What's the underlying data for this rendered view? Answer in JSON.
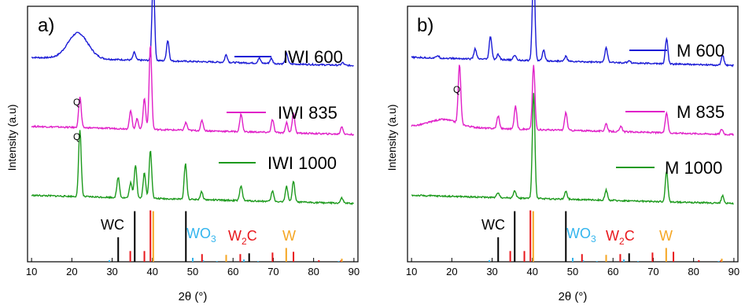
{
  "figure": {
    "xlabel": "2θ (°)",
    "ylabel": "Intensity (a.u)",
    "xticks": [
      10,
      20,
      30,
      40,
      50,
      60,
      70,
      80,
      90
    ]
  },
  "colors": {
    "blue": "#1b1bd6",
    "magenta": "#e020c8",
    "green": "#1d9a1d",
    "WC": "#000000",
    "WO3": "#33b5ee",
    "W2C": "#e8161b",
    "W": "#f5a623"
  },
  "panels": [
    {
      "label": "a)",
      "legend": [
        "IWI 600",
        "IWI 835",
        "IWI 1000"
      ],
      "q_labels": [
        "Q",
        "Q"
      ],
      "refs": {
        "WC": {
          "text": "WC"
        },
        "WO3": {
          "text": "WO",
          "sub": "3"
        },
        "W2C": {
          "text": "W",
          "sub": "2",
          "tail": "C"
        },
        "W": {
          "text": "W"
        }
      }
    },
    {
      "label": "b)",
      "legend": [
        "M 600",
        "M 835",
        "M 1000"
      ],
      "q_labels": [
        "Q"
      ],
      "refs": {
        "WC": {
          "text": "WC"
        },
        "WO3": {
          "text": "WO",
          "sub": "3"
        },
        "W2C": {
          "text": "W",
          "sub": "2",
          "tail": "C"
        },
        "W": {
          "text": "W"
        }
      }
    }
  ],
  "chart_data": [
    {
      "type": "line",
      "title": "a)",
      "xlabel": "2θ (°)",
      "ylabel": "Intensity (a.u)",
      "xlim": [
        9,
        91
      ],
      "series": [
        {
          "name": "IWI 600",
          "color": "#1b1bd6",
          "baseline": 0.8,
          "broad": {
            "x": 21.5,
            "h": 0.1,
            "w": 3.5
          },
          "peaks": [
            [
              35.5,
              0.03
            ],
            [
              40.2,
              0.33
            ],
            [
              43.8,
              0.08
            ],
            [
              58.3,
              0.03
            ],
            [
              66.5,
              0.02
            ],
            [
              69.5,
              0.02
            ],
            [
              73.3,
              0.04
            ],
            [
              87.2,
              0.01
            ]
          ]
        },
        {
          "name": "IWI 835",
          "color": "#e020c8",
          "baseline": 0.53,
          "broad": null,
          "peaks": [
            [
              22.0,
              0.12
            ],
            [
              34.6,
              0.07
            ],
            [
              36.2,
              0.04
            ],
            [
              38.0,
              0.12
            ],
            [
              39.5,
              0.33
            ],
            [
              48.3,
              0.03
            ],
            [
              52.3,
              0.04
            ],
            [
              62.0,
              0.07
            ],
            [
              69.8,
              0.05
            ],
            [
              73.3,
              0.04
            ],
            [
              75.0,
              0.08
            ],
            [
              87.0,
              0.03
            ]
          ]
        },
        {
          "name": "IWI 1000",
          "color": "#1d9a1d",
          "baseline": 0.26,
          "broad": null,
          "peaks": [
            [
              22.0,
              0.26
            ],
            [
              31.5,
              0.08
            ],
            [
              34.6,
              0.06
            ],
            [
              35.8,
              0.13
            ],
            [
              38.0,
              0.1
            ],
            [
              39.5,
              0.19
            ],
            [
              48.2,
              0.14
            ],
            [
              52.2,
              0.03
            ],
            [
              62.0,
              0.06
            ],
            [
              69.8,
              0.04
            ],
            [
              73.3,
              0.06
            ],
            [
              75.0,
              0.08
            ],
            [
              87.0,
              0.02
            ]
          ]
        }
      ],
      "reference_lines": {
        "WC": {
          "color": "#000000",
          "lines": [
            [
              31.5,
              0.32
            ],
            [
              35.6,
              0.66
            ],
            [
              48.3,
              0.66
            ],
            [
              64.0,
              0.11
            ]
          ]
        },
        "WO3": {
          "color": "#33b5ee",
          "lines": [
            [
              29.3,
              0.02
            ],
            [
              50.0,
              0.05
            ],
            [
              52.6,
              0.02
            ],
            [
              56.0,
              0.01
            ],
            [
              62.7,
              0.03
            ],
            [
              66.2,
              0.01
            ],
            [
              86.2,
              0.01
            ]
          ]
        },
        "W2C": {
          "color": "#e8161b",
          "lines": [
            [
              34.5,
              0.14
            ],
            [
              38.0,
              0.14
            ],
            [
              39.5,
              0.67
            ],
            [
              52.3,
              0.1
            ],
            [
              61.8,
              0.1
            ],
            [
              69.8,
              0.12
            ],
            [
              75.0,
              0.13
            ],
            [
              81.3,
              0.02
            ],
            [
              86.8,
              0.02
            ]
          ]
        },
        "W": {
          "color": "#f5a623",
          "lines": [
            [
              40.2,
              0.66
            ],
            [
              58.3,
              0.09
            ],
            [
              73.2,
              0.18
            ],
            [
              87.0,
              0.04
            ]
          ]
        }
      }
    },
    {
      "type": "line",
      "title": "b)",
      "xlabel": "2θ (°)",
      "ylabel": "Intensity (a.u)",
      "xlim": [
        9,
        91
      ],
      "series": [
        {
          "name": "M 600",
          "color": "#1b1bd6",
          "baseline": 0.8,
          "broad": null,
          "peaks": [
            [
              16.5,
              0.01
            ],
            [
              25.8,
              0.04
            ],
            [
              29.6,
              0.09
            ],
            [
              31.5,
              0.02
            ],
            [
              35.6,
              0.02
            ],
            [
              40.3,
              0.37
            ],
            [
              42.8,
              0.04
            ],
            [
              48.3,
              0.02
            ],
            [
              58.3,
              0.06
            ],
            [
              64.0,
              0.01
            ],
            [
              73.3,
              0.1
            ],
            [
              87.2,
              0.04
            ]
          ]
        },
        {
          "name": "M 835",
          "color": "#e020c8",
          "baseline": 0.53,
          "broad": {
            "x": 18.0,
            "h": 0.03,
            "w": 5
          },
          "peaks": [
            [
              21.9,
              0.23
            ],
            [
              31.5,
              0.05
            ],
            [
              35.8,
              0.09
            ],
            [
              40.3,
              0.25
            ],
            [
              48.3,
              0.07
            ],
            [
              58.3,
              0.03
            ],
            [
              62.0,
              0.02
            ],
            [
              73.3,
              0.08
            ],
            [
              87.0,
              0.02
            ]
          ]
        },
        {
          "name": "M 1000",
          "color": "#1d9a1d",
          "baseline": 0.26,
          "broad": null,
          "peaks": [
            [
              31.5,
              0.02
            ],
            [
              35.6,
              0.03
            ],
            [
              40.3,
              0.41
            ],
            [
              48.3,
              0.03
            ],
            [
              58.3,
              0.04
            ],
            [
              73.3,
              0.12
            ],
            [
              87.2,
              0.03
            ]
          ]
        }
      ],
      "reference_lines": {
        "WC": {
          "color": "#000000",
          "lines": [
            [
              31.5,
              0.32
            ],
            [
              35.6,
              0.66
            ],
            [
              48.3,
              0.66
            ],
            [
              64.0,
              0.11
            ]
          ]
        },
        "WO3": {
          "color": "#33b5ee",
          "lines": [
            [
              29.3,
              0.02
            ],
            [
              50.0,
              0.05
            ],
            [
              52.6,
              0.02
            ],
            [
              56.0,
              0.01
            ],
            [
              62.7,
              0.03
            ],
            [
              66.2,
              0.01
            ],
            [
              86.2,
              0.01
            ]
          ]
        },
        "W2C": {
          "color": "#e8161b",
          "lines": [
            [
              34.5,
              0.14
            ],
            [
              38.0,
              0.14
            ],
            [
              39.5,
              0.67
            ],
            [
              52.3,
              0.1
            ],
            [
              61.8,
              0.1
            ],
            [
              69.8,
              0.12
            ],
            [
              75.0,
              0.13
            ],
            [
              81.3,
              0.02
            ],
            [
              86.8,
              0.02
            ]
          ]
        },
        "W": {
          "color": "#f5a623",
          "lines": [
            [
              40.2,
              0.66
            ],
            [
              58.3,
              0.09
            ],
            [
              73.2,
              0.18
            ],
            [
              87.0,
              0.04
            ]
          ]
        }
      }
    }
  ]
}
